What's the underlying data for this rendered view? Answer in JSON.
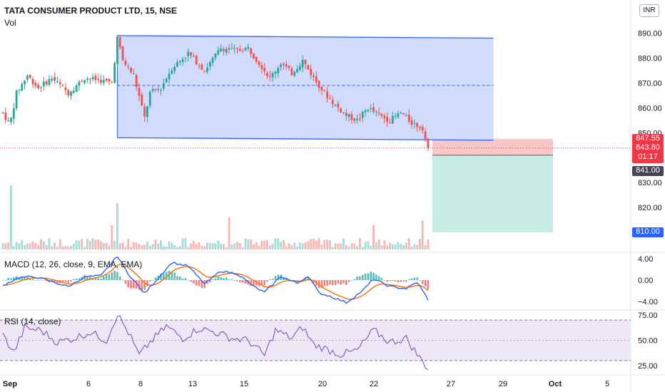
{
  "header": {
    "symbol_title": "TATA CONSUMER PRODUCT LTD, 15, NSE",
    "volume_label": "Vol",
    "macd_label": "MACD (12, 26, close, 9, EMA, EMA)",
    "rsi_label": "RSI (14, close)",
    "currency": "INR"
  },
  "colors": {
    "up": "#26a69a",
    "down": "#ef5350",
    "channel_fill": "#c9d6fb",
    "channel_line": "#2962ff",
    "stop_zone": "#f9c7c7",
    "target_zone": "#c8ece5",
    "macd_line": "#2962ff",
    "signal_line": "#ff6d00",
    "rsi_line": "#7e57c2",
    "rsi_band": "#ede7f6",
    "price_tag_red": "#f23645",
    "price_tag_dark": "#434651",
    "price_tag_blue": "#2962ff"
  },
  "axis": {
    "price_ticks": [
      "890.00",
      "880.00",
      "870.00",
      "860.00",
      "850.00",
      "830.00",
      "820.00"
    ],
    "macd_ticks": [
      "4.00",
      "0.00",
      "−4.00"
    ],
    "rsi_ticks": [
      "75.00",
      "50.00",
      "25.00"
    ],
    "x_ticks": [
      "Sep",
      "6",
      "8",
      "13",
      "15",
      "20",
      "22",
      "27",
      "29",
      "Oct",
      "5"
    ]
  },
  "price_tags": {
    "stop": "847.55",
    "last_price": "843.80",
    "countdown": "01:17",
    "entry": "841.00",
    "target": "810.00"
  },
  "chart_data": [
    {
      "type": "candlestick",
      "title": "TATA CONSUMER PRODUCT LTD, 15, NSE",
      "y_axis_unit": "INR",
      "x_categories": [
        "Sep",
        "6",
        "8",
        "13",
        "15",
        "20",
        "22",
        "27",
        "29",
        "Oct",
        "5"
      ],
      "ylim": [
        806,
        893
      ],
      "close_path": [
        {
          "x": 0,
          "close": 858
        },
        {
          "x": 2.5,
          "close": 853
        },
        {
          "x": 5,
          "close": 866
        },
        {
          "x": 9,
          "close": 873
        },
        {
          "x": 13,
          "close": 868
        },
        {
          "x": 18,
          "close": 872
        },
        {
          "x": 24,
          "close": 866
        },
        {
          "x": 30,
          "close": 872
        },
        {
          "x": 36,
          "close": 871
        },
        {
          "x": 40,
          "close": 870
        },
        {
          "x": 42,
          "close": 888
        },
        {
          "x": 44,
          "close": 879
        },
        {
          "x": 48,
          "close": 873
        },
        {
          "x": 52,
          "close": 856
        },
        {
          "x": 54,
          "close": 866
        },
        {
          "x": 58,
          "close": 868
        },
        {
          "x": 62,
          "close": 876
        },
        {
          "x": 68,
          "close": 882
        },
        {
          "x": 74,
          "close": 875
        },
        {
          "x": 80,
          "close": 884
        },
        {
          "x": 86,
          "close": 883
        },
        {
          "x": 90,
          "close": 884
        },
        {
          "x": 94,
          "close": 878
        },
        {
          "x": 98,
          "close": 872
        },
        {
          "x": 102,
          "close": 878
        },
        {
          "x": 106,
          "close": 874
        },
        {
          "x": 110,
          "close": 879
        },
        {
          "x": 114,
          "close": 872
        },
        {
          "x": 118,
          "close": 866
        },
        {
          "x": 122,
          "close": 861
        },
        {
          "x": 126,
          "close": 857
        },
        {
          "x": 130,
          "close": 855
        },
        {
          "x": 134,
          "close": 860
        },
        {
          "x": 138,
          "close": 857
        },
        {
          "x": 142,
          "close": 855
        },
        {
          "x": 146,
          "close": 858
        },
        {
          "x": 150,
          "close": 854
        },
        {
          "x": 154,
          "close": 852
        },
        {
          "x": 156,
          "close": 843
        }
      ],
      "channel": {
        "upper": [
          [
            42,
            889
          ],
          [
            180,
            888
          ]
        ],
        "lower": [
          [
            42,
            848
          ],
          [
            180,
            847
          ]
        ],
        "mid": [
          [
            42,
            869
          ],
          [
            180,
            869
          ]
        ]
      },
      "position": {
        "entry": 841.0,
        "stop": 847.55,
        "target": 810.0,
        "last_price": 843.8
      }
    },
    {
      "type": "bar",
      "name": "Vol",
      "baseline_volume": 0.12,
      "spikes": [
        {
          "x": 3,
          "vol": 1.0
        },
        {
          "x": 42,
          "vol": 0.72
        },
        {
          "x": 40,
          "vol": 0.38
        },
        {
          "x": 83,
          "vol": 0.5
        },
        {
          "x": 136,
          "vol": 0.38
        },
        {
          "x": 154,
          "vol": 0.45
        }
      ]
    },
    {
      "type": "line",
      "name": "MACD (12, 26, close, 9, EMA, EMA)",
      "ylim": [
        -5,
        5
      ],
      "macd_path": [
        {
          "x": 0,
          "v": -1.0
        },
        {
          "x": 6,
          "v": 0.5
        },
        {
          "x": 12,
          "v": 0.6
        },
        {
          "x": 18,
          "v": -0.3
        },
        {
          "x": 24,
          "v": -1.2
        },
        {
          "x": 30,
          "v": 0.6
        },
        {
          "x": 36,
          "v": 0.8
        },
        {
          "x": 42,
          "v": 4.5
        },
        {
          "x": 46,
          "v": 1.2
        },
        {
          "x": 52,
          "v": -2.5
        },
        {
          "x": 58,
          "v": 1.0
        },
        {
          "x": 62,
          "v": 3.3
        },
        {
          "x": 68,
          "v": 2.6
        },
        {
          "x": 74,
          "v": -0.7
        },
        {
          "x": 80,
          "v": 1.7
        },
        {
          "x": 86,
          "v": 1.2
        },
        {
          "x": 92,
          "v": -1.2
        },
        {
          "x": 96,
          "v": -2.3
        },
        {
          "x": 102,
          "v": 0.7
        },
        {
          "x": 108,
          "v": -0.6
        },
        {
          "x": 112,
          "v": 0.8
        },
        {
          "x": 116,
          "v": -2.4
        },
        {
          "x": 120,
          "v": -3.0
        },
        {
          "x": 126,
          "v": -4.2
        },
        {
          "x": 132,
          "v": -2.0
        },
        {
          "x": 136,
          "v": 0.2
        },
        {
          "x": 142,
          "v": -1.2
        },
        {
          "x": 148,
          "v": -1.6
        },
        {
          "x": 152,
          "v": -0.4
        },
        {
          "x": 156,
          "v": -3.6
        }
      ]
    },
    {
      "type": "line",
      "name": "RSI (14, close)",
      "ylim": [
        20,
        80
      ],
      "bands": [
        30,
        70
      ],
      "rsi_path": [
        {
          "x": 0,
          "v": 55
        },
        {
          "x": 4,
          "v": 38
        },
        {
          "x": 8,
          "v": 62
        },
        {
          "x": 14,
          "v": 60
        },
        {
          "x": 20,
          "v": 48
        },
        {
          "x": 26,
          "v": 52
        },
        {
          "x": 32,
          "v": 58
        },
        {
          "x": 38,
          "v": 50
        },
        {
          "x": 42,
          "v": 76
        },
        {
          "x": 46,
          "v": 58
        },
        {
          "x": 50,
          "v": 35
        },
        {
          "x": 54,
          "v": 48
        },
        {
          "x": 60,
          "v": 64
        },
        {
          "x": 66,
          "v": 52
        },
        {
          "x": 72,
          "v": 62
        },
        {
          "x": 78,
          "v": 58
        },
        {
          "x": 84,
          "v": 52
        },
        {
          "x": 90,
          "v": 50
        },
        {
          "x": 96,
          "v": 35
        },
        {
          "x": 100,
          "v": 60
        },
        {
          "x": 106,
          "v": 52
        },
        {
          "x": 110,
          "v": 63
        },
        {
          "x": 114,
          "v": 46
        },
        {
          "x": 118,
          "v": 42
        },
        {
          "x": 124,
          "v": 36
        },
        {
          "x": 130,
          "v": 40
        },
        {
          "x": 136,
          "v": 60
        },
        {
          "x": 142,
          "v": 48
        },
        {
          "x": 148,
          "v": 52
        },
        {
          "x": 152,
          "v": 36
        },
        {
          "x": 156,
          "v": 22
        }
      ]
    }
  ]
}
